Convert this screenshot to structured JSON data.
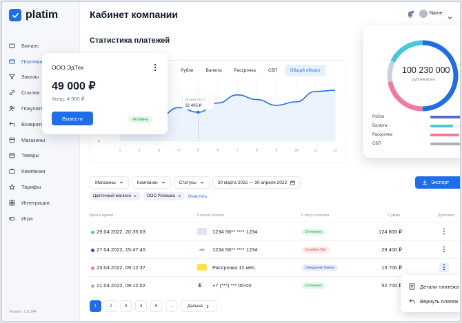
{
  "app": {
    "logo_text": "platim",
    "version": "Version: 1.0.244"
  },
  "sidebar": {
    "items": [
      {
        "label": "Баланс",
        "icon": "wallet-icon"
      },
      {
        "label": "Платежи",
        "icon": "card-icon",
        "active": true
      },
      {
        "label": "Заказы",
        "icon": "filter-icon"
      },
      {
        "label": "Ссылки",
        "icon": "link-icon"
      },
      {
        "label": "Покупате",
        "icon": "users-icon"
      },
      {
        "label": "Возвраты",
        "icon": "return-icon"
      },
      {
        "label": "Магазины",
        "icon": "store-icon"
      },
      {
        "label": "Товары",
        "icon": "box-icon"
      },
      {
        "label": "Компании",
        "icon": "briefcase-icon"
      },
      {
        "label": "Тарифы",
        "icon": "star-icon"
      },
      {
        "label": "Интеграции",
        "icon": "grid-icon"
      },
      {
        "label": "Игра",
        "icon": "gamepad-icon"
      }
    ]
  },
  "header": {
    "title": "Кабинет компании",
    "user_name": "Name"
  },
  "stats": {
    "title": "Статистика платежей",
    "tabs": [
      {
        "label": "Рубли"
      },
      {
        "label": "Валюта"
      },
      {
        "label": "Рассрочка"
      },
      {
        "label": "СБП"
      },
      {
        "label": "Общий оборот",
        "active": true
      }
    ],
    "tooltip": {
      "date": "05 июня 2022 г.",
      "value": "32 495 ₽"
    }
  },
  "chart_data": {
    "type": "line",
    "x": [
      1,
      2,
      3,
      4,
      5,
      6,
      7,
      8,
      9,
      10,
      11,
      12
    ],
    "x_ticks": [
      "1",
      "2",
      "3",
      "4",
      "5",
      "6",
      "7",
      "8",
      "9",
      "10",
      "11",
      "12"
    ],
    "y_ticks": [
      "0"
    ],
    "series": [
      {
        "values": [
          0.52,
          0.3,
          0.42,
          0.58,
          0.5,
          0.66,
          0.8,
          0.72,
          0.62,
          0.68,
          0.86,
          0.88
        ]
      }
    ],
    "highlight_index": 4,
    "grid": true
  },
  "company_card": {
    "title": "ООО ЭдТех",
    "amount": "49 000 ₽",
    "hold": "Холд: 4 900 ₽",
    "button_label": "Вывести",
    "status": "Активна"
  },
  "summary_card": {
    "amount": "100 230 000",
    "caption": "рублей всего",
    "segments": [
      {
        "value": 0.5,
        "color": "#1e6ee8"
      },
      {
        "value": 0.22,
        "color": "#f27a9b"
      },
      {
        "value": 0.1,
        "color": "#c9d0db"
      },
      {
        "value": 0.18,
        "color": "#47c6dc"
      }
    ],
    "legend": [
      {
        "label": "Рубли",
        "value": 0.9,
        "color": "#5b6ad0"
      },
      {
        "label": "Валюта",
        "value": 0.55,
        "color": "#47c6dc"
      },
      {
        "label": "Рассрочка",
        "value": 0.7,
        "color": "#f27a9b"
      },
      {
        "label": "СБП",
        "value": 0.75,
        "color": "#a8b0bd"
      }
    ]
  },
  "filters": {
    "buttons": [
      {
        "label": "Магазины"
      },
      {
        "label": "Компании"
      },
      {
        "label": "Статусы"
      }
    ],
    "date_range": "30 марта 2022 — 30 апреля 2022",
    "export_label": "Экспорт",
    "tags": [
      {
        "label": "Цветочный-магазин"
      },
      {
        "label": "ООО Ромашка"
      }
    ],
    "clear_label": "Очистить"
  },
  "table": {
    "headers": [
      "Дата и время",
      "Способ оплаты",
      "Статус платежа",
      "Сумма",
      "Действия"
    ],
    "rows": [
      {
        "dot": "#47c6dc",
        "date": "29.04.2022, 20:35:03",
        "method_icon": "card-icon",
        "method": "1234 56** **** 1234",
        "status": "Оплачено",
        "status_color": "#2aa058",
        "status_bg": "#e6f7ec",
        "amount": "124 800 ₽"
      },
      {
        "dot": "#1e4fb4",
        "date": "27.04.2022, 15:47:45",
        "method_icon": "mir-icon",
        "method": "1234 56** **** 1234",
        "status": "Ошибка 3ds",
        "status_color": "#e0564a",
        "status_bg": "#fdecea",
        "amount": "29 400 ₽"
      },
      {
        "dot": "#f27a9b",
        "date": "23.04.2022, 09:12:37",
        "method_icon": "installment-icon",
        "method": "Рассрочка 12 мес.",
        "status": "Ожидание банка",
        "status_color": "#3e62c8",
        "status_bg": "#e8eefb",
        "amount": "13 700 ₽"
      },
      {
        "dot": "#a8b0bd",
        "date": "21.04.2022, 09:12:02",
        "method_icon": "sbp-icon",
        "method": "+7 (***) *** 00-00",
        "status": "Оплачено",
        "status_color": "#2aa058",
        "status_bg": "#e6f7ec",
        "amount": "52 700 ₽"
      }
    ]
  },
  "pagination": {
    "pages": [
      "1",
      "2",
      "3",
      "4",
      "5",
      "..."
    ],
    "next_label": "Дальше"
  },
  "context_menu": {
    "items": [
      {
        "label": "Детали платежа"
      },
      {
        "label": "Вернуть платеж"
      }
    ]
  }
}
